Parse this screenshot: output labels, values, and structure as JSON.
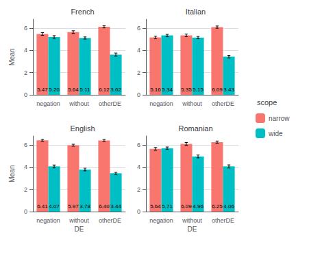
{
  "chart_data": [
    {
      "type": "bar",
      "title": "French",
      "categories": [
        "negation",
        "without",
        "otherDE"
      ],
      "series": [
        {
          "name": "narrow",
          "color": "#F8766D",
          "values": [
            5.47,
            5.64,
            6.12
          ],
          "value_labels": [
            "5.47",
            "5.64",
            "6.12"
          ],
          "errors": [
            0.12,
            0.12,
            0.1
          ]
        },
        {
          "name": "wide",
          "color": "#00BFC4",
          "values": [
            5.2,
            5.11,
            3.62
          ],
          "value_labels": [
            "5.20",
            "5.11",
            "3.62"
          ],
          "errors": [
            0.12,
            0.1,
            0.14
          ]
        }
      ],
      "ylabel": "Mean",
      "ylim": [
        0,
        6.8
      ],
      "yticks": [
        0,
        2,
        4,
        6
      ],
      "grid": true,
      "data_labels": true,
      "legend": "right",
      "legend_title": "scope"
    },
    {
      "type": "bar",
      "title": "Italian",
      "categories": [
        "negation",
        "without",
        "otherDE"
      ],
      "series": [
        {
          "name": "narrow",
          "color": "#F8766D",
          "values": [
            5.16,
            5.35,
            6.09
          ],
          "value_labels": [
            "5.16",
            "5.35",
            "6.09"
          ],
          "errors": [
            0.12,
            0.12,
            0.1
          ]
        },
        {
          "name": "wide",
          "color": "#00BFC4",
          "values": [
            5.34,
            5.15,
            3.43
          ],
          "value_labels": [
            "5.34",
            "5.15",
            "3.43"
          ],
          "errors": [
            0.1,
            0.1,
            0.12
          ]
        }
      ],
      "ylim": [
        0,
        6.8
      ],
      "yticks": [
        0,
        2,
        4,
        6
      ],
      "grid": true,
      "data_labels": true
    },
    {
      "type": "bar",
      "title": "English",
      "categories": [
        "negation",
        "without",
        "otherDE"
      ],
      "series": [
        {
          "name": "narrow",
          "color": "#F8766D",
          "values": [
            6.41,
            5.97,
            6.4
          ],
          "value_labels": [
            "6.41",
            "5.97",
            "6.40"
          ],
          "errors": [
            0.08,
            0.09,
            0.08
          ]
        },
        {
          "name": "wide",
          "color": "#00BFC4",
          "values": [
            4.07,
            3.78,
            3.44
          ],
          "value_labels": [
            "4.07",
            "3.78",
            "3.44"
          ],
          "errors": [
            0.12,
            0.12,
            0.1
          ]
        }
      ],
      "ylabel": "Mean",
      "xlabel": "DE",
      "ylim": [
        0,
        6.8
      ],
      "yticks": [
        0,
        2,
        4,
        6
      ],
      "grid": true,
      "data_labels": true
    },
    {
      "type": "bar",
      "title": "Romanian",
      "categories": [
        "negation",
        "without",
        "otherDE"
      ],
      "series": [
        {
          "name": "narrow",
          "color": "#F8766D",
          "values": [
            5.64,
            6.09,
            6.25
          ],
          "value_labels": [
            "5.64",
            "6.09",
            "6.25"
          ],
          "errors": [
            0.12,
            0.12,
            0.1
          ]
        },
        {
          "name": "wide",
          "color": "#00BFC4",
          "values": [
            5.71,
            4.96,
            4.06
          ],
          "value_labels": [
            "5.71",
            "4.96",
            "4.06"
          ],
          "errors": [
            0.1,
            0.13,
            0.14
          ]
        }
      ],
      "xlabel": "DE",
      "ylim": [
        0,
        6.8
      ],
      "yticks": [
        0,
        2,
        4,
        6
      ],
      "grid": true,
      "data_labels": true
    }
  ]
}
